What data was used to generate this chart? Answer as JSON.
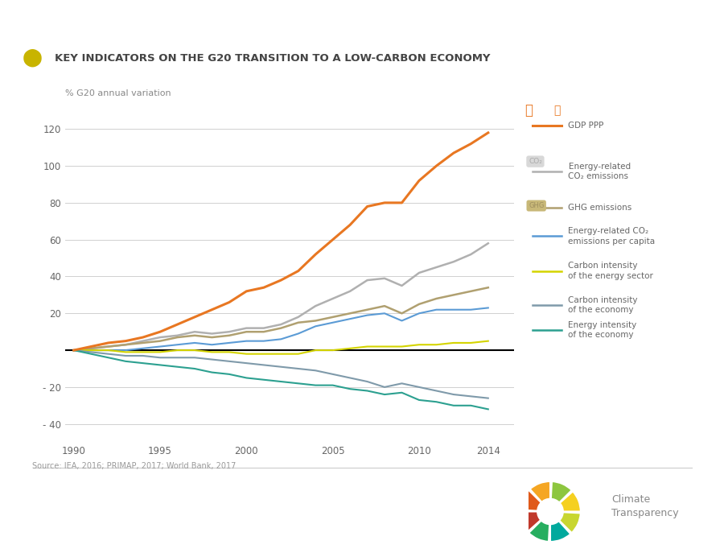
{
  "title": "KEY INDICATORS ON THE G20 TRANSITION TO A LOW-CARBON ECONOMY",
  "ylabel": "% G20 annual variation",
  "source_text": "Source: IEA, 2016; PRIMAP, 2017; World Bank, 2017",
  "years": [
    1990,
    1991,
    1992,
    1993,
    1994,
    1995,
    1996,
    1997,
    1998,
    1999,
    2000,
    2001,
    2002,
    2003,
    2004,
    2005,
    2006,
    2007,
    2008,
    2009,
    2010,
    2011,
    2012,
    2013,
    2014
  ],
  "gdp_ppp": [
    0,
    2,
    4,
    5,
    7,
    10,
    14,
    18,
    22,
    26,
    32,
    34,
    38,
    43,
    52,
    60,
    68,
    78,
    80,
    80,
    92,
    100,
    107,
    112,
    118
  ],
  "energy_co2": [
    0,
    1,
    2,
    3,
    5,
    7,
    8,
    10,
    9,
    10,
    12,
    12,
    14,
    18,
    24,
    28,
    32,
    38,
    39,
    35,
    42,
    45,
    48,
    52,
    58
  ],
  "ghg": [
    0,
    1,
    2,
    3,
    4,
    5,
    7,
    8,
    7,
    8,
    10,
    10,
    12,
    15,
    16,
    18,
    20,
    22,
    24,
    20,
    25,
    28,
    30,
    32,
    34
  ],
  "energy_co2_percap": [
    0,
    0,
    0,
    0,
    1,
    2,
    3,
    4,
    3,
    4,
    5,
    5,
    6,
    9,
    13,
    15,
    17,
    19,
    20,
    16,
    20,
    22,
    22,
    22,
    23
  ],
  "carbon_intensity_energy": [
    0,
    0,
    0,
    -1,
    -1,
    -1,
    0,
    0,
    -1,
    -1,
    -2,
    -2,
    -2,
    -2,
    0,
    0,
    1,
    2,
    2,
    2,
    3,
    3,
    4,
    4,
    5
  ],
  "carbon_intensity_economy": [
    0,
    -1,
    -2,
    -3,
    -3,
    -4,
    -4,
    -4,
    -5,
    -6,
    -7,
    -8,
    -9,
    -10,
    -11,
    -13,
    -15,
    -17,
    -20,
    -18,
    -20,
    -22,
    -24,
    -25,
    -26
  ],
  "energy_intensity_economy": [
    0,
    -2,
    -4,
    -6,
    -7,
    -8,
    -9,
    -10,
    -12,
    -13,
    -15,
    -16,
    -17,
    -18,
    -19,
    -19,
    -21,
    -22,
    -24,
    -23,
    -27,
    -28,
    -30,
    -30,
    -32
  ],
  "gdp_color": "#E87722",
  "energy_co2_color": "#b0b0b0",
  "ghg_color": "#b0a070",
  "energy_co2_percap_color": "#5b9bd5",
  "carbon_intensity_energy_color": "#d4d400",
  "carbon_intensity_economy_color": "#7f9aaa",
  "energy_intensity_economy_color": "#2ca090",
  "ylim": [
    -50,
    130
  ],
  "yticks": [
    -40,
    -20,
    0,
    20,
    40,
    60,
    80,
    100,
    120
  ],
  "xticks": [
    1990,
    1995,
    2000,
    2005,
    2010,
    2014
  ]
}
